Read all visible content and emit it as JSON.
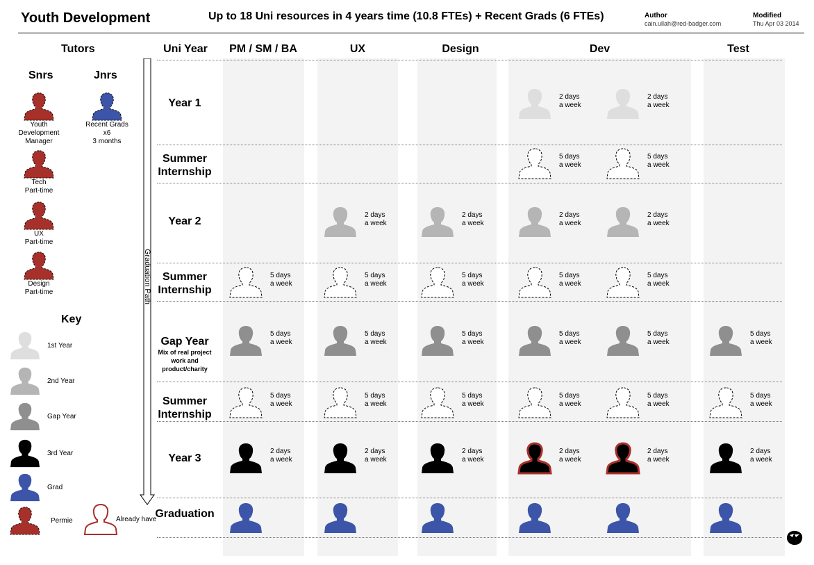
{
  "header": {
    "title": "Youth Development",
    "subtitle": "Up to 18 Uni resources in 4 years time (10.8 FTEs) + Recent Grads (6 FTEs)",
    "author_label": "Author",
    "author_value": "cain.ullah@red-badger.com",
    "modified_label": "Modified",
    "modified_value": "Thu Apr 03 2014"
  },
  "tutors": {
    "heading": "Tutors",
    "snrs_heading": "Snrs",
    "jnrs_heading": "Jnrs",
    "snrs": [
      {
        "lines": [
          "Youth",
          "Development",
          "Manager"
        ]
      },
      {
        "lines": [
          "Tech",
          "Part-time"
        ]
      },
      {
        "lines": [
          "UX",
          "Part-time"
        ]
      },
      {
        "lines": [
          "Design",
          "Part-time"
        ]
      }
    ],
    "jnrs": [
      {
        "lines": [
          "Recent Grads",
          "x6",
          "3 months"
        ]
      }
    ]
  },
  "key": {
    "heading": "Key",
    "items": [
      {
        "label": "1st Year",
        "type": "y1"
      },
      {
        "label": "2nd Year",
        "type": "y2"
      },
      {
        "label": "Gap Year",
        "type": "gap"
      },
      {
        "label": "3rd Year",
        "type": "y3"
      },
      {
        "label": "Grad",
        "type": "grad"
      },
      {
        "label": "Permie",
        "type": "permie"
      }
    ],
    "already_have": "Already have"
  },
  "arrow_label": "Graduation Path",
  "columns": [
    "Uni Year",
    "PM / SM / BA",
    "UX",
    "Design",
    "Dev",
    "Test"
  ],
  "rows": [
    {
      "label": "Year 1",
      "sub": ""
    },
    {
      "label": "Summer Internship",
      "sub": ""
    },
    {
      "label": "Year 2",
      "sub": ""
    },
    {
      "label": "Summer Internship",
      "sub": ""
    },
    {
      "label": "Gap Year",
      "sub": "Mix of real project work and product/charity"
    },
    {
      "label": "Summer Internship",
      "sub": ""
    },
    {
      "label": "Year 3",
      "sub": ""
    },
    {
      "label": "Graduation",
      "sub": ""
    }
  ],
  "cells": [
    {
      "row": 0,
      "slot": 3,
      "type": "y1",
      "l1": "2 days",
      "l2": "a week"
    },
    {
      "row": 0,
      "slot": 4,
      "type": "y1",
      "l1": "2 days",
      "l2": "a week"
    },
    {
      "row": 1,
      "slot": 3,
      "type": "intern",
      "l1": "5 days",
      "l2": "a week"
    },
    {
      "row": 1,
      "slot": 4,
      "type": "intern",
      "l1": "5 days",
      "l2": "a week"
    },
    {
      "row": 2,
      "slot": 1,
      "type": "y2",
      "l1": "2 days",
      "l2": "a week"
    },
    {
      "row": 2,
      "slot": 2,
      "type": "y2",
      "l1": "2 days",
      "l2": "a week"
    },
    {
      "row": 2,
      "slot": 3,
      "type": "y2",
      "l1": "2 days",
      "l2": "a week"
    },
    {
      "row": 2,
      "slot": 4,
      "type": "y2",
      "l1": "2 days",
      "l2": "a week"
    },
    {
      "row": 3,
      "slot": 0,
      "type": "intern",
      "l1": "5 days",
      "l2": "a week"
    },
    {
      "row": 3,
      "slot": 1,
      "type": "intern",
      "l1": "5 days",
      "l2": "a week"
    },
    {
      "row": 3,
      "slot": 2,
      "type": "intern",
      "l1": "5 days",
      "l2": "a week"
    },
    {
      "row": 3,
      "slot": 3,
      "type": "intern",
      "l1": "5 days",
      "l2": "a week"
    },
    {
      "row": 3,
      "slot": 4,
      "type": "intern",
      "l1": "5 days",
      "l2": "a week"
    },
    {
      "row": 4,
      "slot": 0,
      "type": "gap",
      "l1": "5 days",
      "l2": "a week"
    },
    {
      "row": 4,
      "slot": 1,
      "type": "gap",
      "l1": "5 days",
      "l2": "a week"
    },
    {
      "row": 4,
      "slot": 2,
      "type": "gap",
      "l1": "5 days",
      "l2": "a week"
    },
    {
      "row": 4,
      "slot": 3,
      "type": "gap",
      "l1": "5 days",
      "l2": "a week"
    },
    {
      "row": 4,
      "slot": 4,
      "type": "gap",
      "l1": "5 days",
      "l2": "a week"
    },
    {
      "row": 4,
      "slot": 5,
      "type": "gap",
      "l1": "5 days",
      "l2": "a week"
    },
    {
      "row": 5,
      "slot": 0,
      "type": "intern",
      "l1": "5 days",
      "l2": "a week"
    },
    {
      "row": 5,
      "slot": 1,
      "type": "intern",
      "l1": "5 days",
      "l2": "a week"
    },
    {
      "row": 5,
      "slot": 2,
      "type": "intern",
      "l1": "5 days",
      "l2": "a week"
    },
    {
      "row": 5,
      "slot": 3,
      "type": "intern",
      "l1": "5 days",
      "l2": "a week"
    },
    {
      "row": 5,
      "slot": 4,
      "type": "intern",
      "l1": "5 days",
      "l2": "a week"
    },
    {
      "row": 5,
      "slot": 5,
      "type": "intern",
      "l1": "5 days",
      "l2": "a week"
    },
    {
      "row": 6,
      "slot": 0,
      "type": "y3",
      "l1": "2 days",
      "l2": "a week"
    },
    {
      "row": 6,
      "slot": 1,
      "type": "y3",
      "l1": "2 days",
      "l2": "a week"
    },
    {
      "row": 6,
      "slot": 2,
      "type": "y3",
      "l1": "2 days",
      "l2": "a week"
    },
    {
      "row": 6,
      "slot": 3,
      "type": "y3red",
      "l1": "2 days",
      "l2": "a week"
    },
    {
      "row": 6,
      "slot": 4,
      "type": "y3red",
      "l1": "2 days",
      "l2": "a week"
    },
    {
      "row": 6,
      "slot": 5,
      "type": "y3",
      "l1": "2 days",
      "l2": "a week"
    },
    {
      "row": 7,
      "slot": 0,
      "type": "grad",
      "l1": "",
      "l2": ""
    },
    {
      "row": 7,
      "slot": 1,
      "type": "grad",
      "l1": "",
      "l2": ""
    },
    {
      "row": 7,
      "slot": 2,
      "type": "grad",
      "l1": "",
      "l2": ""
    },
    {
      "row": 7,
      "slot": 3,
      "type": "grad",
      "l1": "",
      "l2": ""
    },
    {
      "row": 7,
      "slot": 4,
      "type": "grad",
      "l1": "",
      "l2": ""
    },
    {
      "row": 7,
      "slot": 5,
      "type": "grad",
      "l1": "",
      "l2": ""
    }
  ],
  "colors": {
    "y1": "#dedede",
    "y2": "#b5b5b5",
    "gap": "#8f8f8f",
    "y3": "#000000",
    "grad": "#3d55a8",
    "permie": "#a8302a",
    "band": "#f3f3f3"
  },
  "icons": [
    "person-icon",
    "badger-logo-icon"
  ]
}
